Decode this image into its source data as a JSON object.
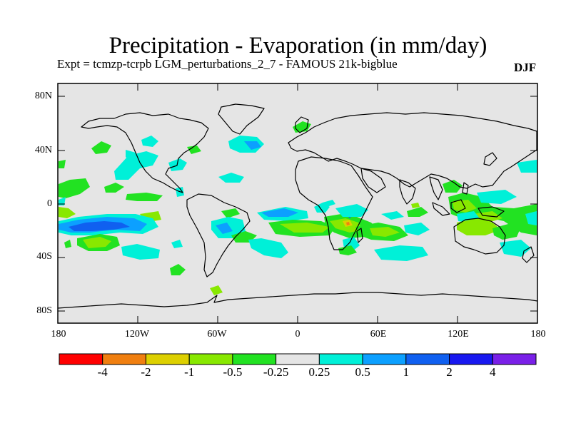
{
  "title": "Precipitation - Evaporation (in mm/day)",
  "subtitle": "Expt = tcmzp-tcrpb    LGM_perturbations_2_7 - FAMOUS 21k-bigblue",
  "season": "DJF",
  "lat_axis": [
    "80N",
    "40N",
    "0",
    "40S",
    "80S"
  ],
  "lon_axis": [
    "180",
    "120W",
    "60W",
    "0",
    "60E",
    "120E",
    "180"
  ],
  "colorbar": {
    "colors": [
      "#ff0000",
      "#f07f10",
      "#ddd000",
      "#88e800",
      "#22e222",
      "#e5e5e5",
      "#00f0d8",
      "#0ca0ff",
      "#1060f0",
      "#1818f0",
      "#7a20e8"
    ],
    "labels": [
      "-4",
      "-2",
      "-1",
      "-0.5",
      "-0.25",
      "0.25",
      "0.5",
      "1",
      "2",
      "4"
    ]
  },
  "colors": {
    "background": "#e5e5e5",
    "coast": "#000000"
  }
}
